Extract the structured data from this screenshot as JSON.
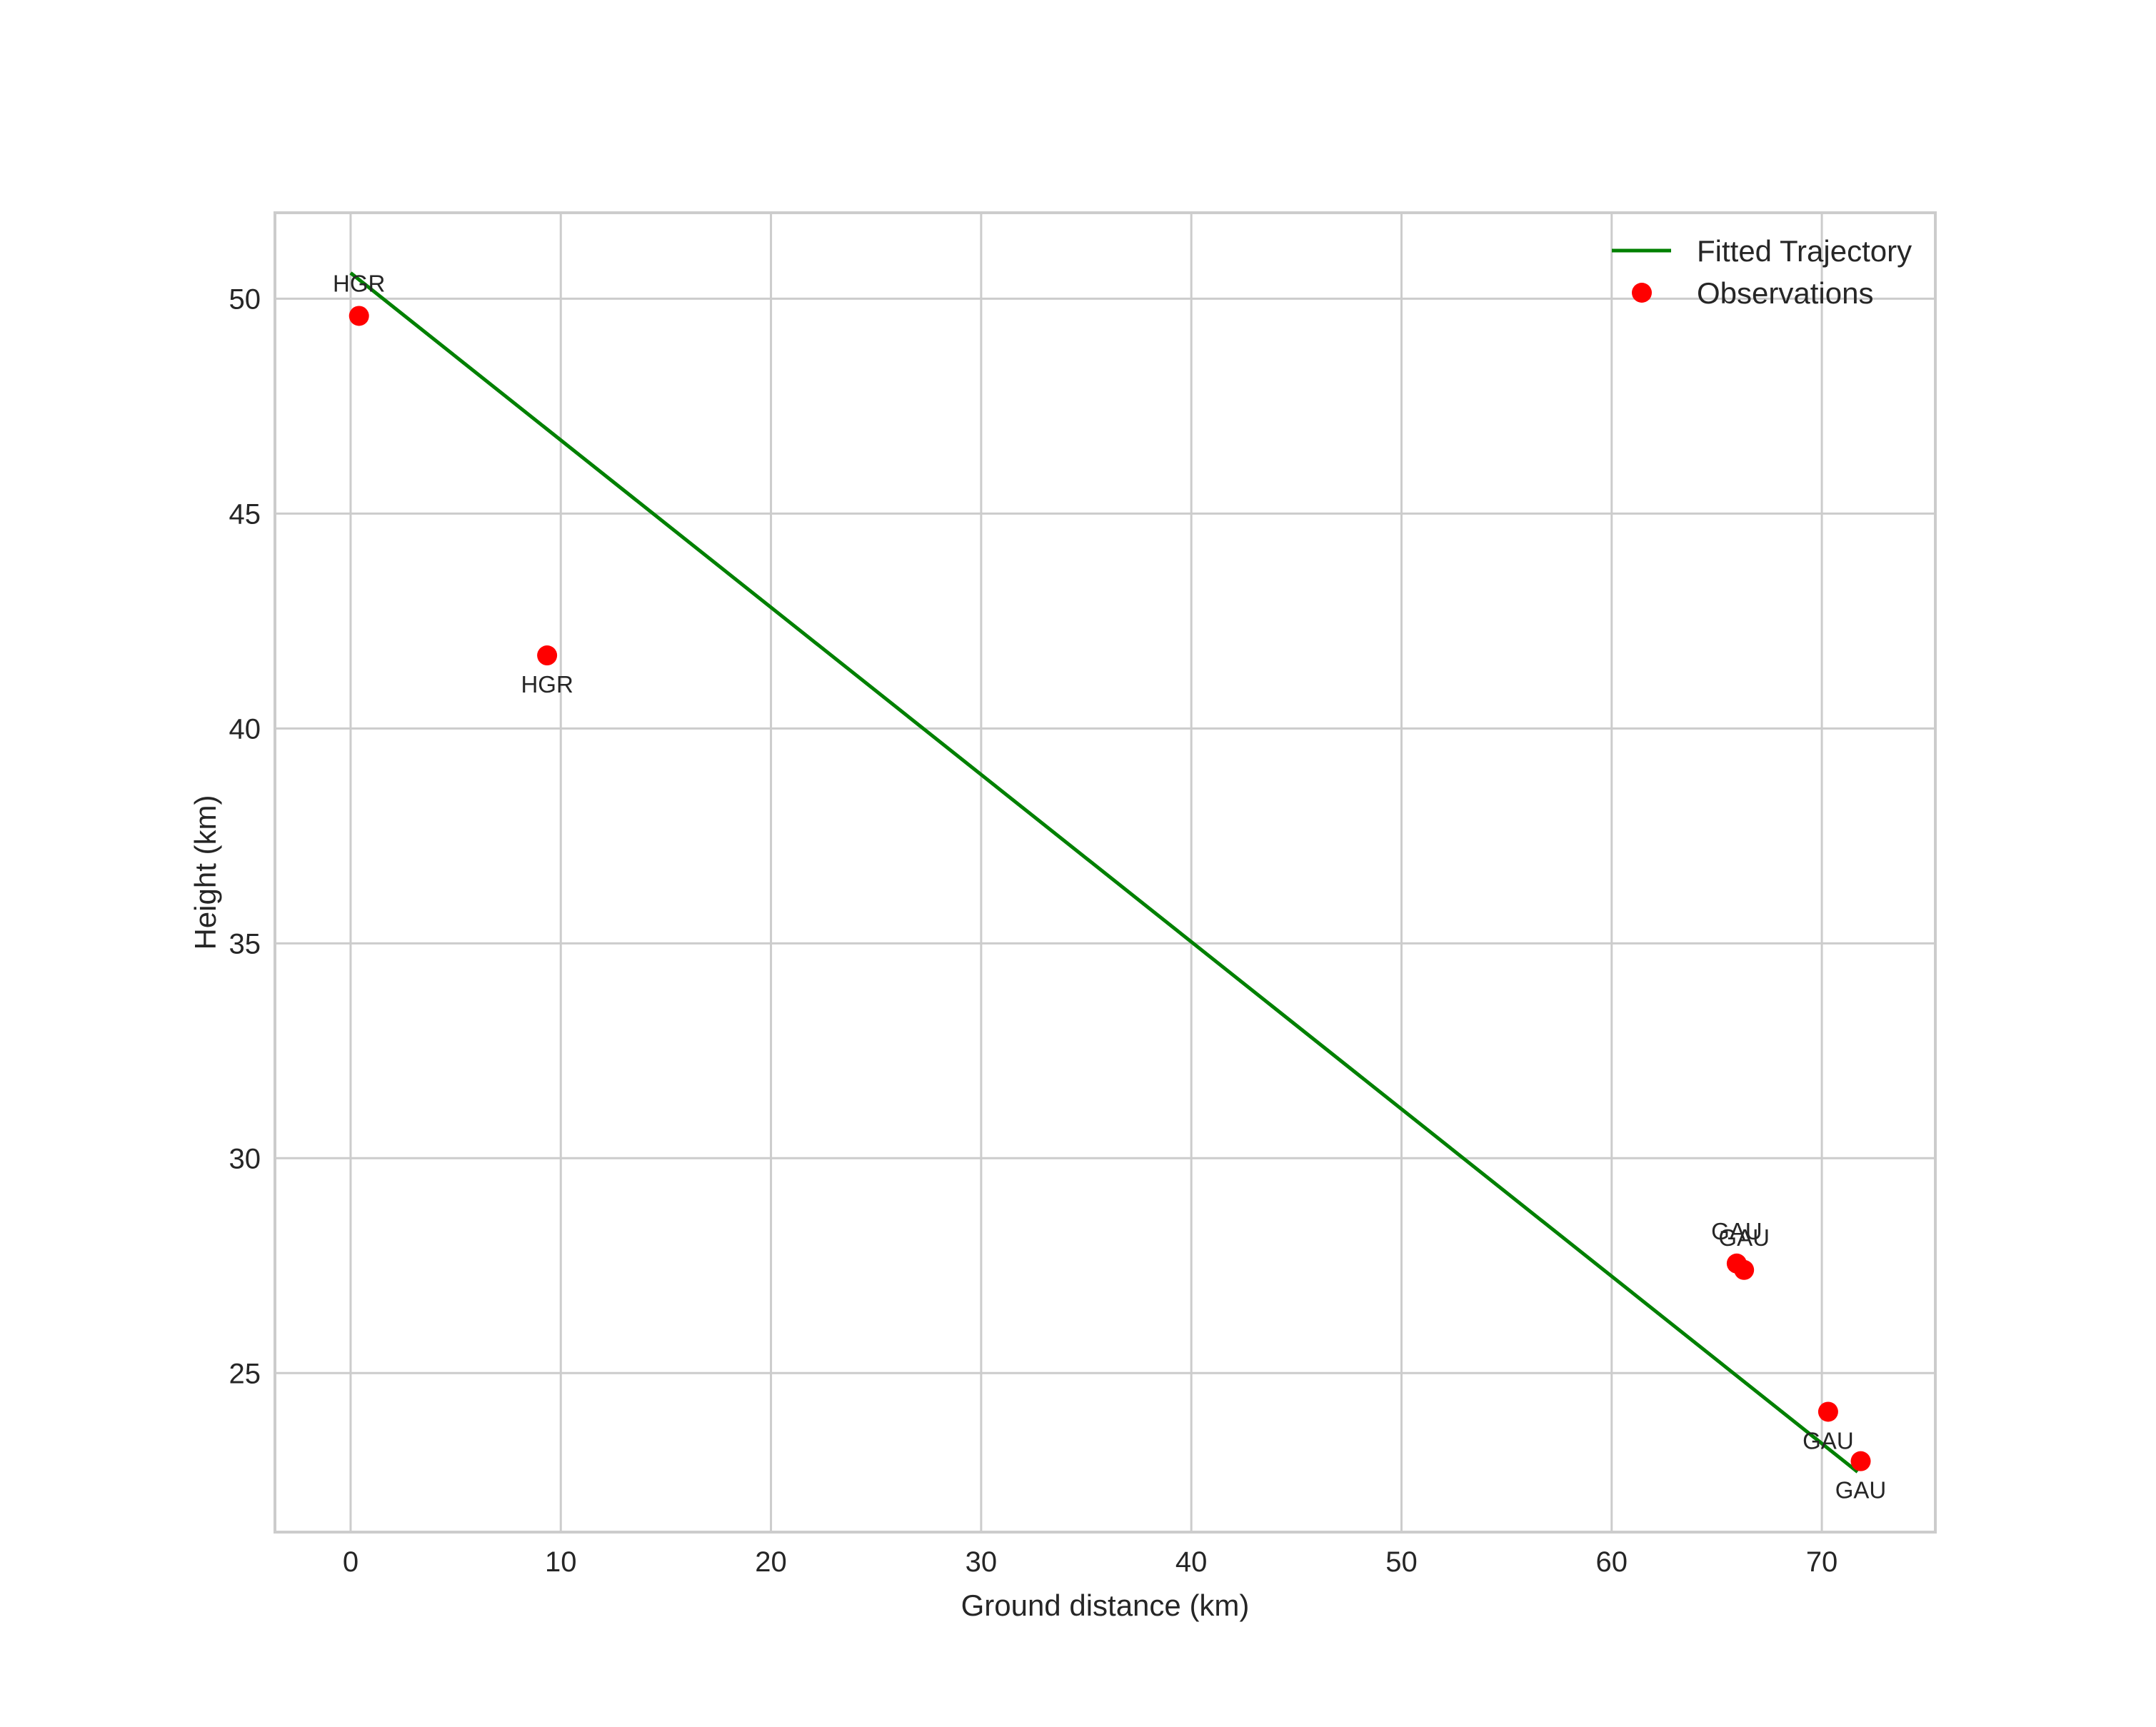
{
  "chart_data": {
    "type": "line+scatter",
    "title": "",
    "xlabel": "Ground distance (km)",
    "ylabel": "Height (km)",
    "xlim": [
      -3.6,
      75.4
    ],
    "ylim": [
      21.3,
      52.0
    ],
    "grid": true,
    "legend_position": "upper right",
    "x_ticks": [
      0,
      10,
      20,
      30,
      40,
      50,
      60,
      70
    ],
    "y_ticks": [
      25,
      30,
      35,
      40,
      45,
      50
    ],
    "series": [
      {
        "name": "Fitted Trajectory",
        "type": "line",
        "color": "#008000",
        "x": [
          0.0,
          71.7
        ],
        "y": [
          50.6,
          22.7
        ]
      },
      {
        "name": "Observations",
        "type": "scatter",
        "color": "#ff0000",
        "points": [
          {
            "x": 0.4,
            "y": 49.6,
            "label": "HGR",
            "label_pos": "above"
          },
          {
            "x": 9.35,
            "y": 41.7,
            "label": "HGR",
            "label_pos": "below"
          },
          {
            "x": 65.95,
            "y": 27.55,
            "label": "GAU",
            "label_pos": "above"
          },
          {
            "x": 66.3,
            "y": 27.4,
            "label": "GAU",
            "label_pos": "above"
          },
          {
            "x": 70.3,
            "y": 24.1,
            "label": "GAU",
            "label_pos": "below"
          },
          {
            "x": 71.85,
            "y": 22.95,
            "label": "GAU",
            "label_pos": "below"
          }
        ]
      }
    ]
  },
  "legend": {
    "items": [
      {
        "label": "Fitted Trajectory",
        "kind": "line",
        "color": "#008000"
      },
      {
        "label": "Observations",
        "kind": "marker",
        "color": "#ff0000"
      }
    ]
  }
}
